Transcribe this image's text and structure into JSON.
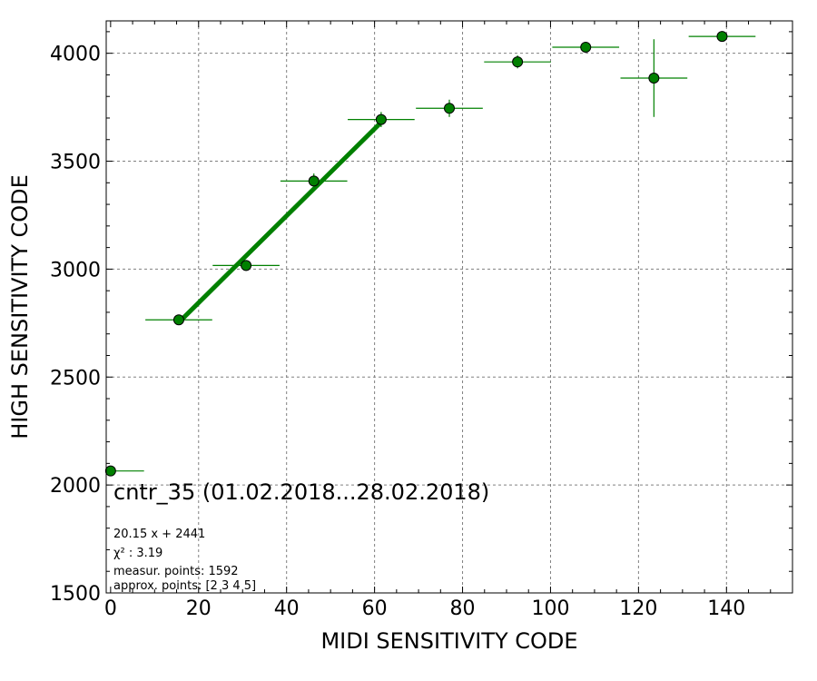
{
  "chart_data": {
    "type": "scatter",
    "title": "cntr_35 (01.02.2018...28.02.2018)",
    "xlabel": "MIDI SENSITIVITY CODE",
    "ylabel": "HIGH SENSITIVITY CODE",
    "xlim": [
      -1,
      155
    ],
    "ylim": [
      1500,
      4150
    ],
    "xticks": [
      0,
      20,
      40,
      60,
      80,
      100,
      120,
      140
    ],
    "yticks": [
      1500,
      2000,
      2500,
      3000,
      3500,
      4000
    ],
    "grid": true,
    "colors": {
      "points": "#008000",
      "fit": "#008000"
    },
    "points": [
      {
        "x": 0,
        "y": 2065,
        "xerr": 7.6,
        "yerr": 0
      },
      {
        "x": 15.5,
        "y": 2765,
        "xerr": 7.6,
        "yerr": 10
      },
      {
        "x": 30.8,
        "y": 3017,
        "xerr": 7.6,
        "yerr": 25
      },
      {
        "x": 46.2,
        "y": 3408,
        "xerr": 7.6,
        "yerr": 35
      },
      {
        "x": 61.5,
        "y": 3693,
        "xerr": 7.6,
        "yerr": 35
      },
      {
        "x": 77,
        "y": 3745,
        "xerr": 7.6,
        "yerr": 40
      },
      {
        "x": 92.5,
        "y": 3960,
        "xerr": 7.6,
        "yerr": 30
      },
      {
        "x": 108,
        "y": 4028,
        "xerr": 7.6,
        "yerr": 15
      },
      {
        "x": 123.5,
        "y": 3885,
        "xerr": 7.6,
        "yerr": 180
      },
      {
        "x": 139,
        "y": 4078,
        "xerr": 7.6,
        "yerr": 15
      }
    ],
    "fit": {
      "x": [
        15.5,
        61.5
      ],
      "slope": 20.15,
      "intercept": 2441
    },
    "annotations": [
      "20.15 x + 2441",
      "χ² : 3.19",
      "measur. points: 1592",
      "approx. points: [2 3 4 5]"
    ]
  }
}
